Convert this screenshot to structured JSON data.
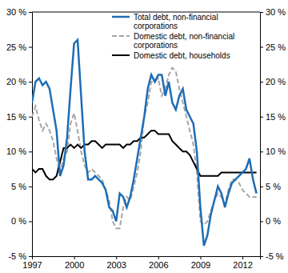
{
  "chart_data": {
    "type": "line",
    "x": [
      1997,
      1997.25,
      1997.5,
      1997.75,
      1998,
      1998.25,
      1998.5,
      1998.75,
      1999,
      1999.25,
      1999.5,
      1999.75,
      2000,
      2000.25,
      2000.5,
      2000.75,
      2001,
      2001.25,
      2001.5,
      2001.75,
      2002,
      2002.25,
      2002.5,
      2002.75,
      2003,
      2003.25,
      2003.5,
      2003.75,
      2004,
      2004.25,
      2004.5,
      2004.75,
      2005,
      2005.25,
      2005.5,
      2005.75,
      2006,
      2006.25,
      2006.5,
      2006.75,
      2007,
      2007.25,
      2007.5,
      2007.75,
      2008,
      2008.25,
      2008.5,
      2008.75,
      2009,
      2009.25,
      2009.5,
      2009.75,
      2010,
      2010.25,
      2010.5,
      2010.75,
      2011,
      2011.25,
      2011.5,
      2011.75,
      2012,
      2012.25,
      2012.5,
      2012.75,
      2013
    ],
    "series": [
      {
        "name": "Total debt, non-financial corporations",
        "color": "#1f6db5",
        "line_style": "solid",
        "values": [
          17,
          20,
          20.5,
          19.5,
          20,
          19,
          16,
          13,
          6.5,
          8,
          12,
          19,
          25.5,
          26,
          18,
          10,
          6,
          6,
          6.5,
          6,
          5.5,
          4.5,
          2,
          1.5,
          0,
          4,
          3.5,
          2,
          3.5,
          6,
          9,
          12,
          15,
          19,
          21,
          20,
          21,
          21,
          18,
          20,
          17,
          16,
          18,
          19,
          16,
          15,
          14,
          10,
          2,
          -3.5,
          -2,
          1,
          3,
          5,
          4,
          2,
          4,
          5.5,
          6,
          6.5,
          7,
          7.5,
          9,
          6,
          4
        ]
      },
      {
        "name": "Domestic debt, non-financial corporations",
        "color": "#a6a6a6",
        "line_style": "dashed",
        "values": [
          15,
          16.5,
          14.5,
          13,
          14,
          13,
          11.5,
          9,
          7,
          9,
          10,
          14,
          15.5,
          13,
          10,
          8,
          7,
          7.5,
          7,
          6.5,
          6,
          4.5,
          3,
          0,
          -1,
          -1,
          2,
          3.5,
          3,
          5,
          7,
          10,
          15,
          17,
          20,
          20,
          20.5,
          18,
          19,
          21,
          22,
          21.5,
          19,
          17,
          15,
          13,
          11,
          7,
          0,
          -0.5,
          0,
          1.5,
          3,
          4,
          3.5,
          2.5,
          4.5,
          6,
          6,
          5.5,
          4.5,
          4,
          3.5,
          3.5,
          3.5
        ]
      },
      {
        "name": "Domestic debt, households",
        "color": "#000000",
        "line_style": "solid",
        "values": [
          7.5,
          7,
          7.5,
          7.5,
          6.5,
          6,
          6,
          6.5,
          8.5,
          10.5,
          10.5,
          11,
          10.5,
          11,
          10.5,
          11,
          11,
          11.5,
          11.5,
          11,
          10.5,
          11,
          11,
          11,
          11,
          11,
          10.5,
          11,
          11,
          11.5,
          11.5,
          12,
          12,
          12.5,
          13,
          13,
          12.5,
          12.5,
          12.5,
          12.5,
          11.5,
          11,
          10.5,
          10,
          10,
          9.5,
          8.5,
          7.5,
          6.5,
          6.5,
          6.5,
          6.5,
          6.5,
          6.5,
          7,
          7,
          7,
          7,
          7,
          7,
          7,
          7,
          7,
          7,
          7
        ]
      }
    ],
    "xlim": [
      1997,
      2013.25
    ],
    "xticks": [
      1997,
      2000,
      2003,
      2006,
      2009,
      2012
    ],
    "ylim": [
      -5,
      30
    ],
    "yticks": [
      {
        "value": -5,
        "label": "-5 %"
      },
      {
        "value": 0,
        "label": "0 %"
      },
      {
        "value": 5,
        "label": "5 %"
      },
      {
        "value": 10,
        "label": "10 %"
      },
      {
        "value": 15,
        "label": "15 %"
      },
      {
        "value": 20,
        "label": "20 %"
      },
      {
        "value": 25,
        "label": "25 %"
      },
      {
        "value": 30,
        "label": "30 %"
      }
    ],
    "grid": false,
    "legend": "upper right"
  }
}
